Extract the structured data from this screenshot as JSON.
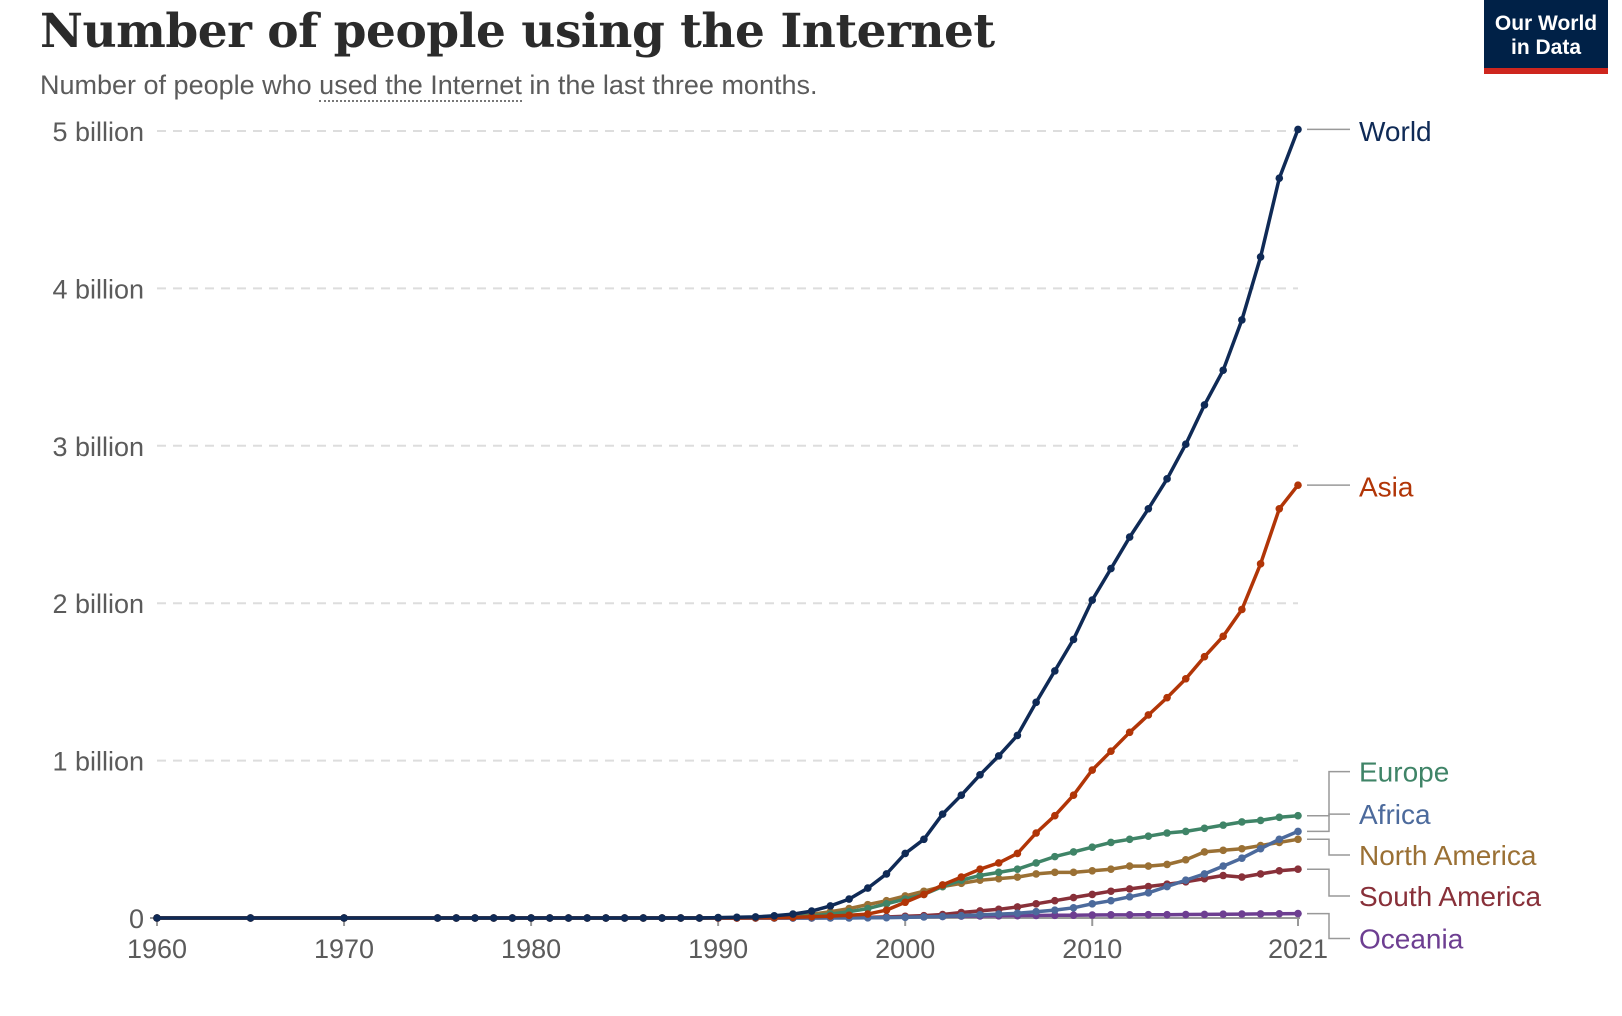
{
  "header": {
    "title": "Number of people using the Internet",
    "subtitle_before": "Number of people who ",
    "subtitle_term": "used the Internet",
    "subtitle_after": " in the last three months."
  },
  "logo": {
    "line1": "Our World",
    "line2": "in Data",
    "bg_color": "#002147",
    "accent_color": "#ce261e"
  },
  "chart_data": {
    "type": "line",
    "title": "Number of people using the Internet",
    "xlabel": "",
    "ylabel": "",
    "xlim": [
      1960,
      2021
    ],
    "ylim": [
      0,
      5000000000
    ],
    "grid": "horizontal dashed",
    "legend": "right, labels at line ends",
    "y_ticks": [
      {
        "value": 0,
        "label": "0"
      },
      {
        "value": 1000000000,
        "label": "1 billion"
      },
      {
        "value": 2000000000,
        "label": "2 billion"
      },
      {
        "value": 3000000000,
        "label": "3 billion"
      },
      {
        "value": 4000000000,
        "label": "4 billion"
      },
      {
        "value": 5000000000,
        "label": "5 billion"
      }
    ],
    "x_ticks": [
      {
        "value": 1960,
        "label": "1960"
      },
      {
        "value": 1970,
        "label": "1970"
      },
      {
        "value": 1980,
        "label": "1980"
      },
      {
        "value": 1990,
        "label": "1990"
      },
      {
        "value": 2000,
        "label": "2000"
      },
      {
        "value": 2010,
        "label": "2010"
      },
      {
        "value": 2021,
        "label": "2021"
      }
    ],
    "x": [
      1960,
      1965,
      1970,
      1975,
      1976,
      1977,
      1978,
      1979,
      1980,
      1981,
      1982,
      1983,
      1984,
      1985,
      1986,
      1987,
      1988,
      1989,
      1990,
      1991,
      1992,
      1993,
      1994,
      1995,
      1996,
      1997,
      1998,
      1999,
      2000,
      2001,
      2002,
      2003,
      2004,
      2005,
      2006,
      2007,
      2008,
      2009,
      2010,
      2011,
      2012,
      2013,
      2014,
      2015,
      2016,
      2017,
      2018,
      2019,
      2020,
      2021
    ],
    "series": [
      {
        "name": "World",
        "color": "#0f2a56",
        "label_value": 5000000000,
        "values": [
          0,
          0,
          0,
          0,
          0,
          0,
          0,
          0,
          0,
          0,
          0,
          0,
          0,
          0,
          0,
          0,
          0,
          0,
          2600000,
          4400000,
          7000000,
          14000000,
          25000000,
          44000000,
          77000000,
          120000000,
          190000000,
          280000000,
          410000000,
          500000000,
          660000000,
          780000000,
          910000000,
          1030000000,
          1160000000,
          1370000000,
          1570000000,
          1770000000,
          2020000000,
          2220000000,
          2420000000,
          2600000000,
          2790000000,
          3010000000,
          3260000000,
          3480000000,
          3800000000,
          4200000000,
          4700000000,
          5010000000
        ]
      },
      {
        "name": "Asia",
        "color": "#b13507",
        "label_value": 2740000000,
        "values": [
          0,
          0,
          0,
          0,
          0,
          0,
          0,
          0,
          0,
          0,
          0,
          0,
          0,
          0,
          0,
          0,
          0,
          0,
          0,
          0,
          1000000,
          2000000,
          4000000,
          8000000,
          12000000,
          17000000,
          25000000,
          50000000,
          100000000,
          150000000,
          210000000,
          260000000,
          310000000,
          350000000,
          410000000,
          540000000,
          650000000,
          780000000,
          940000000,
          1060000000,
          1180000000,
          1290000000,
          1400000000,
          1520000000,
          1660000000,
          1790000000,
          1960000000,
          2250000000,
          2600000000,
          2750000000
        ]
      },
      {
        "name": "Europe",
        "color": "#3f8467",
        "label_value": 930000000,
        "values": [
          0,
          0,
          0,
          0,
          0,
          0,
          0,
          0,
          0,
          0,
          0,
          0,
          0,
          0,
          0,
          0,
          0,
          0,
          1000000,
          2000000,
          3000000,
          5000000,
          8000000,
          14000000,
          25000000,
          40000000,
          60000000,
          90000000,
          120000000,
          150000000,
          200000000,
          240000000,
          270000000,
          290000000,
          310000000,
          350000000,
          390000000,
          420000000,
          450000000,
          480000000,
          500000000,
          520000000,
          540000000,
          550000000,
          570000000,
          590000000,
          610000000,
          620000000,
          640000000,
          650000000
        ]
      },
      {
        "name": "Africa",
        "color": "#4c6a9c",
        "label_value": 660000000,
        "values": [
          0,
          0,
          0,
          0,
          0,
          0,
          0,
          0,
          0,
          0,
          0,
          0,
          0,
          0,
          0,
          0,
          0,
          0,
          0,
          0,
          0,
          0,
          0,
          0,
          0,
          0,
          1000000,
          2000000,
          4000000,
          7000000,
          10000000,
          15000000,
          20000000,
          25000000,
          30000000,
          40000000,
          50000000,
          65000000,
          90000000,
          110000000,
          135000000,
          160000000,
          200000000,
          240000000,
          280000000,
          330000000,
          380000000,
          440000000,
          500000000,
          550000000
        ]
      },
      {
        "name": "North America",
        "color": "#9a7034",
        "label_value": 400000000,
        "values": [
          0,
          0,
          0,
          0,
          0,
          0,
          0,
          0,
          0,
          0,
          0,
          0,
          0,
          0,
          0,
          0,
          0,
          0,
          1500000,
          2400000,
          4000000,
          7000000,
          13000000,
          24000000,
          40000000,
          60000000,
          85000000,
          110000000,
          140000000,
          170000000,
          200000000,
          220000000,
          240000000,
          250000000,
          260000000,
          280000000,
          290000000,
          290000000,
          300000000,
          310000000,
          330000000,
          330000000,
          340000000,
          370000000,
          420000000,
          430000000,
          440000000,
          460000000,
          480000000,
          500000000
        ]
      },
      {
        "name": "South America",
        "color": "#883039",
        "label_value": 140000000,
        "values": [
          0,
          0,
          0,
          0,
          0,
          0,
          0,
          0,
          0,
          0,
          0,
          0,
          0,
          0,
          0,
          0,
          0,
          0,
          0,
          0,
          0,
          0,
          0,
          0,
          1000000,
          2000000,
          4000000,
          7000000,
          11000000,
          15000000,
          22000000,
          35000000,
          45000000,
          55000000,
          70000000,
          90000000,
          110000000,
          130000000,
          150000000,
          170000000,
          185000000,
          200000000,
          215000000,
          230000000,
          250000000,
          270000000,
          260000000,
          280000000,
          300000000,
          310000000
        ]
      },
      {
        "name": "Oceania",
        "color": "#6d3e91",
        "label_value": -130000000,
        "values": [
          0,
          0,
          0,
          0,
          0,
          0,
          0,
          0,
          0,
          0,
          0,
          0,
          0,
          0,
          0,
          0,
          0,
          0,
          0,
          0,
          0,
          0,
          500000,
          1000000,
          2000000,
          3000000,
          4000000,
          5000000,
          7000000,
          8000000,
          10000000,
          12000000,
          13000000,
          14000000,
          15000000,
          16000000,
          17000000,
          18000000,
          19000000,
          20000000,
          20000000,
          21000000,
          21000000,
          22000000,
          23000000,
          24000000,
          25000000,
          26000000,
          27000000,
          28000000
        ]
      }
    ]
  }
}
